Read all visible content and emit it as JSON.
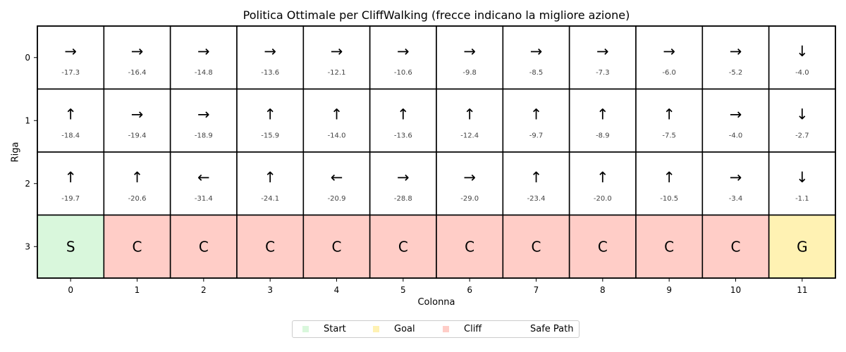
{
  "chart_data": {
    "type": "heatmap",
    "title": "Politica Ottimale per CliffWalking (frecce indicano la migliore azione)",
    "xlabel": "Colonna",
    "ylabel": "Riga",
    "x_ticks": [
      "0",
      "1",
      "2",
      "3",
      "4",
      "5",
      "6",
      "7",
      "8",
      "9",
      "10",
      "11"
    ],
    "y_ticks": [
      "0",
      "1",
      "2",
      "3"
    ],
    "rows": [
      {
        "arrows": [
          "→",
          "→",
          "→",
          "→",
          "→",
          "→",
          "→",
          "→",
          "→",
          "→",
          "→",
          "↓"
        ],
        "values": [
          "-17.3",
          "-16.4",
          "-14.8",
          "-13.6",
          "-12.1",
          "-10.6",
          "-9.8",
          "-8.5",
          "-7.3",
          "-6.0",
          "-5.2",
          "-4.0"
        ]
      },
      {
        "arrows": [
          "↑",
          "→",
          "→",
          "↑",
          "↑",
          "↑",
          "↑",
          "↑",
          "↑",
          "↑",
          "→",
          "↓"
        ],
        "values": [
          "-18.4",
          "-19.4",
          "-18.9",
          "-15.9",
          "-14.0",
          "-13.6",
          "-12.4",
          "-9.7",
          "-8.9",
          "-7.5",
          "-4.0",
          "-2.7"
        ]
      },
      {
        "arrows": [
          "↑",
          "↑",
          "←",
          "↑",
          "←",
          "→",
          "→",
          "↑",
          "↑",
          "↑",
          "→",
          "↓"
        ],
        "values": [
          "-19.7",
          "-20.6",
          "-31.4",
          "-24.1",
          "-20.9",
          "-28.8",
          "-29.0",
          "-23.4",
          "-20.0",
          "-10.5",
          "-3.4",
          "-1.1"
        ]
      }
    ],
    "special_row": {
      "labels": [
        "S",
        "C",
        "C",
        "C",
        "C",
        "C",
        "C",
        "C",
        "C",
        "C",
        "C",
        "G"
      ],
      "kinds": [
        "start",
        "cliff",
        "cliff",
        "cliff",
        "cliff",
        "cliff",
        "cliff",
        "cliff",
        "cliff",
        "cliff",
        "cliff",
        "goal"
      ]
    },
    "colors": {
      "start": "#d9f7dc",
      "cliff": "#ffcdc7",
      "goal": "#fff2b3",
      "grid": "#000000",
      "value_text": "#444444"
    },
    "legend": {
      "placement": "bottom-center",
      "entries": [
        {
          "label": "Start",
          "color": "#d9f7dc"
        },
        {
          "label": "Goal",
          "color": "#fff2b3"
        },
        {
          "label": "Cliff",
          "color": "#ffcdc7"
        },
        {
          "label": "Safe Path",
          "color": "none"
        }
      ]
    }
  }
}
